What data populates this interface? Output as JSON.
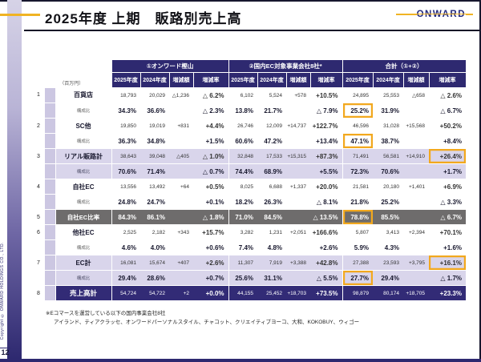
{
  "slide": {
    "title": "2025年度 上期　販路別売上高",
    "logo": "ONWARD",
    "page_number": "12",
    "copyright": "Copyright © ONWARD HOLDINGS CO., LTD.",
    "unit_label": "（百万円）"
  },
  "colors": {
    "header_navy": "#2e2970",
    "row_lavender": "#d9d5eb",
    "row_gray": "#6e6c6c",
    "total_navy": "#322b76",
    "highlight_orange": "#f2a81e",
    "accent_yellow": "#f0b323"
  },
  "footnote": {
    "line1": "※Eコマースを運営している以下の国内事業会社8社",
    "line2": "アイランド、ティアクラッセ、オンワードパーソナルスタイル、チャコット、クリエイティブヨーコ、大和、KOKOBUY、ウィゴー"
  },
  "table": {
    "groups": [
      {
        "label": "①オンワード樫山"
      },
      {
        "label": "②国内EC対象事業会社8社*"
      },
      {
        "label": "合計（①+②）"
      }
    ],
    "columns": [
      "2025年度",
      "2024年度",
      "増減額",
      "増減率"
    ],
    "sub_label": "構成比",
    "rows": [
      {
        "num": "1",
        "label": "百貨店",
        "style": "white",
        "main": [
          "18,793",
          "20,029",
          "△1,236",
          "△ 6.2%",
          "6,102",
          "5,524",
          "+578",
          "+10.5%",
          "24,895",
          "25,553",
          "△658",
          "△ 2.6%"
        ],
        "main_hl": [],
        "sub": [
          "34.3%",
          "36.6%",
          "",
          "△ 2.3%",
          "13.8%",
          "21.7%",
          "",
          "△ 7.9%",
          "25.2%",
          "31.9%",
          "",
          "△ 6.7%"
        ],
        "sub_hl": [
          8
        ]
      },
      {
        "num": "2",
        "label": "SC他",
        "style": "white",
        "main": [
          "19,850",
          "19,019",
          "+831",
          "+4.4%",
          "26,746",
          "12,009",
          "+14,737",
          "+122.7%",
          "46,596",
          "31,028",
          "+15,568",
          "+50.2%"
        ],
        "main_hl": [],
        "sub": [
          "36.3%",
          "34.8%",
          "",
          "+1.5%",
          "60.6%",
          "47.2%",
          "",
          "+13.4%",
          "47.1%",
          "38.7%",
          "",
          "+8.4%"
        ],
        "sub_hl": [
          8
        ]
      },
      {
        "num": "3",
        "label": "リアル販路計",
        "style": "lavender",
        "main": [
          "38,643",
          "39,048",
          "△405",
          "△ 1.0%",
          "32,848",
          "17,533",
          "+15,315",
          "+87.3%",
          "71,491",
          "56,581",
          "+14,910",
          "+26.4%"
        ],
        "main_hl": [
          11
        ],
        "sub": [
          "70.6%",
          "71.4%",
          "",
          "△ 0.7%",
          "74.4%",
          "68.9%",
          "",
          "+5.5%",
          "72.3%",
          "70.6%",
          "",
          "+1.7%"
        ],
        "sub_hl": []
      },
      {
        "num": "4",
        "label": "自社EC",
        "style": "white",
        "main": [
          "13,556",
          "13,492",
          "+64",
          "+0.5%",
          "8,025",
          "6,688",
          "+1,337",
          "+20.0%",
          "21,581",
          "20,180",
          "+1,401",
          "+6.9%"
        ],
        "main_hl": [],
        "sub": [
          "24.8%",
          "24.7%",
          "",
          "+0.1%",
          "18.2%",
          "26.3%",
          "",
          "△ 8.1%",
          "21.8%",
          "25.2%",
          "",
          "△ 3.3%"
        ],
        "sub_hl": []
      },
      {
        "num": "5",
        "label": "自社EC比率",
        "style": "gray",
        "main": [
          "84.3%",
          "86.1%",
          "",
          "△ 1.8%",
          "71.0%",
          "84.5%",
          "",
          "△ 13.5%",
          "78.8%",
          "85.5%",
          "",
          "△ 6.7%"
        ],
        "main_hl": [
          8
        ],
        "sub": null,
        "sub_hl": []
      },
      {
        "num": "6",
        "label": "他社EC",
        "style": "white",
        "main": [
          "2,525",
          "2,182",
          "+343",
          "+15.7%",
          "3,282",
          "1,231",
          "+2,051",
          "+166.6%",
          "5,807",
          "3,413",
          "+2,394",
          "+70.1%"
        ],
        "main_hl": [],
        "sub": [
          "4.6%",
          "4.0%",
          "",
          "+0.6%",
          "7.4%",
          "4.8%",
          "",
          "+2.6%",
          "5.9%",
          "4.3%",
          "",
          "+1.6%"
        ],
        "sub_hl": []
      },
      {
        "num": "7",
        "label": "EC計",
        "style": "lavender",
        "main": [
          "16,081",
          "15,674",
          "+407",
          "+2.6%",
          "11,307",
          "7,919",
          "+3,388",
          "+42.8%",
          "27,388",
          "23,593",
          "+3,795",
          "+16.1%"
        ],
        "main_hl": [
          11
        ],
        "sub": [
          "29.4%",
          "28.6%",
          "",
          "+0.7%",
          "25.6%",
          "31.1%",
          "",
          "△ 5.5%",
          "27.7%",
          "29.4%",
          "",
          "△ 1.7%"
        ],
        "sub_hl": [
          8
        ]
      },
      {
        "num": "8",
        "label": "売上高計",
        "style": "total",
        "main": [
          "54,724",
          "54,722",
          "+2",
          "+0.0%",
          "44,155",
          "25,452",
          "+18,703",
          "+73.5%",
          "98,879",
          "80,174",
          "+18,705",
          "+23.3%"
        ],
        "main_hl": [],
        "sub": null,
        "sub_hl": []
      }
    ]
  }
}
